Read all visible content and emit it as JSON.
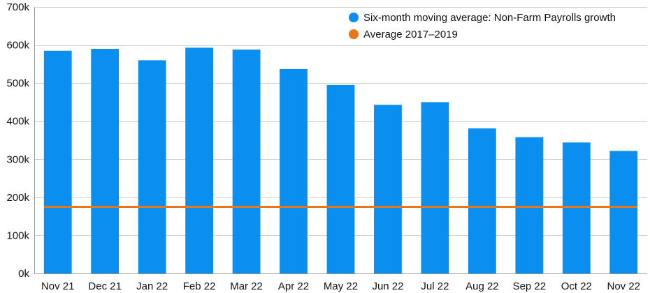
{
  "chart_data": {
    "type": "bar",
    "title": "",
    "xlabel": "",
    "ylabel": "",
    "categories": [
      "Nov 21",
      "Dec 21",
      "Jan 22",
      "Feb 22",
      "Mar 22",
      "Apr 22",
      "May 22",
      "Jun 22",
      "Jul 22",
      "Aug 22",
      "Sep 22",
      "Oct 22",
      "Nov 22"
    ],
    "series": [
      {
        "name": "Six-month moving average: Non-Farm Payrolls growth",
        "type": "bar",
        "color": "#0a8ef0",
        "values": [
          585000,
          590000,
          560000,
          593000,
          588000,
          537000,
          495000,
          443000,
          450000,
          381000,
          358000,
          344000,
          322000
        ]
      },
      {
        "name": "Average 2017–2019",
        "type": "line",
        "color": "#e8761b",
        "values": [
          175000,
          175000,
          175000,
          175000,
          175000,
          175000,
          175000,
          175000,
          175000,
          175000,
          175000,
          175000,
          175000
        ]
      }
    ],
    "ylim": [
      0,
      700000
    ],
    "yticks": [
      0,
      100000,
      200000,
      300000,
      400000,
      500000,
      600000,
      700000
    ],
    "ytick_labels": [
      "0k",
      "100k",
      "200k",
      "300k",
      "400k",
      "500k",
      "600k",
      "700k"
    ],
    "grid": true,
    "legend_position": "top-right"
  }
}
